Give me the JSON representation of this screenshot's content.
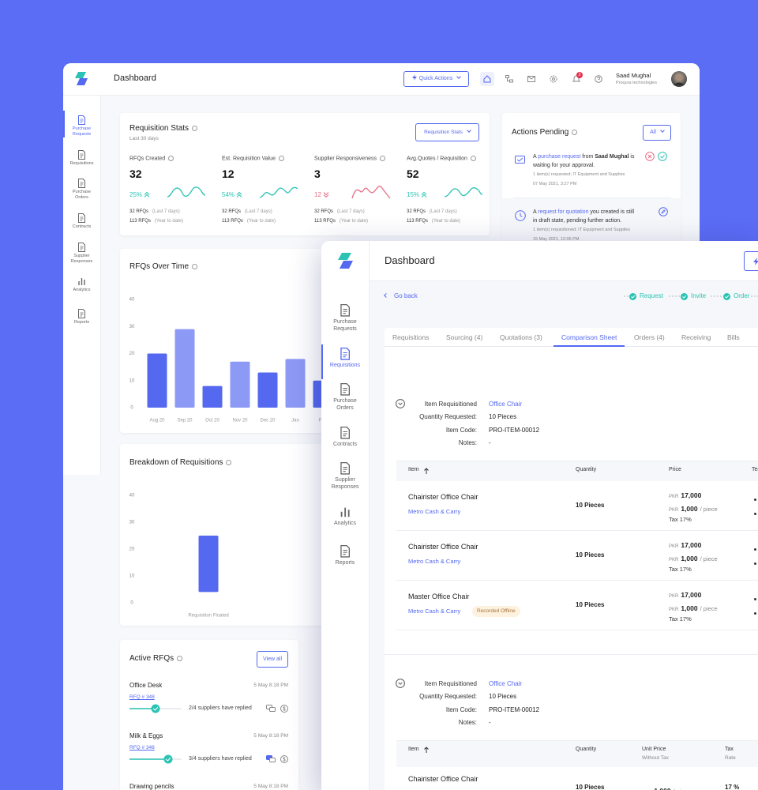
{
  "back_window": {
    "header": {
      "title": "Dashboard",
      "quick_actions": "Quick Actions",
      "notifications": "2",
      "user_name": "Saad Mughal",
      "user_company": "Proqura technologies"
    },
    "sidebar": {
      "items": [
        "Purchase Requests",
        "Requisitions",
        "Purchase Orders",
        "Contracts",
        "Supplier Responses",
        "Analytics",
        "Reports"
      ],
      "active": 0
    },
    "requisition_stats": {
      "title": "Requisition Stats",
      "subtitle": "Last 30 days",
      "dropdown": "Requisition Stats",
      "stats": [
        {
          "label": "RFQs Created",
          "value": "32",
          "change": "25%",
          "color": "#2bc3b3",
          "recent": "32 RFQs",
          "recent_note": "(Last 7 days)",
          "total": "113 RFQs",
          "total_note": "(Year to date)"
        },
        {
          "label": "Est. Requisition Value",
          "value": "12",
          "change": "54%",
          "color": "#2bc3b3",
          "recent": "32 RFQs",
          "recent_note": "(Last 7 days)",
          "total": "113 RFQs",
          "total_note": "(Year to date)"
        },
        {
          "label": "Supplier Responsiveness",
          "value": "3",
          "change": "12",
          "color": "#e66d86",
          "recent": "32 RFQs",
          "recent_note": "(Last 7 days)",
          "total": "113 RFQs",
          "total_note": "(Year to date)"
        },
        {
          "label": "Avg.Quotes / Requisition",
          "value": "52",
          "change": "15%",
          "color": "#2bc3b3",
          "recent": "32 RFQs",
          "recent_note": "(Last 7 days)",
          "total": "113 RFQs",
          "total_note": "(Year to date)"
        }
      ]
    },
    "actions_pending": {
      "title": "Actions Pending",
      "filter": "All",
      "items": [
        {
          "prefix": "A",
          "link": "purchase request",
          "middle": "from",
          "person": "Saad Mughal",
          "suffix": "is waiting for your approval.",
          "details": "1 item(s) requested; IT Equipment and Supplies",
          "date": "07 May 2021, 3:27 PM"
        },
        {
          "prefix": "A",
          "link": "request for quotation",
          "suffix": "you created is still in draft state, pending further action.",
          "details": "1 item(s) requisitioned; IT Equipment and Supplies",
          "date": "15 May 2021, 12:05 PM"
        }
      ]
    },
    "active_rfqs": {
      "title": "Active RFQs",
      "button": "View all",
      "items": [
        {
          "name": "Office Desk",
          "date": "5 May 8:18 PM",
          "rfq": "RFQ # 348",
          "replies": "2/4 suppliers have replied"
        },
        {
          "name": "Milk & Eggs",
          "date": "5 May 8:18 PM",
          "rfq": "RFQ # 348",
          "replies": "3/4 suppliers have replied"
        },
        {
          "name": "Drawing pencils",
          "date": "5 May 8:18 PM"
        }
      ]
    }
  },
  "chart_data": [
    {
      "type": "bar",
      "title": "RFQs Over Time",
      "categories": [
        "Aug 20",
        "Sep 20",
        "Oct 20",
        "Nov 20",
        "Dec 20",
        "Jan",
        "Feb"
      ],
      "values": [
        20,
        29,
        8,
        17,
        13,
        18,
        10
      ],
      "colors": [
        "#5468f0",
        "#8c99f5",
        "#5468f0",
        "#8c99f5",
        "#5468f0",
        "#8c99f5",
        "#5468f0"
      ],
      "ylim": [
        0,
        40
      ],
      "yticks": [
        0,
        10,
        20,
        30,
        40
      ]
    },
    {
      "type": "range_bar",
      "title": "Breakdown of Requisitions",
      "categories": [
        "Requisition Floated"
      ],
      "low": [
        4
      ],
      "high": [
        25
      ],
      "color": "#5468f0",
      "ylim": [
        0,
        40
      ],
      "yticks": [
        0,
        10,
        20,
        30,
        40
      ]
    }
  ],
  "front_window": {
    "header": {
      "title": "Dashboard"
    },
    "sidebar": {
      "items": [
        "Purchase Requests",
        "Requisitions",
        "Purchase Orders",
        "Contracts",
        "Supplier Responses",
        "Analytics",
        "Reports"
      ],
      "active": 1
    },
    "go_back": "Go back",
    "steps": [
      "Request",
      "Invite",
      "Order"
    ],
    "tabs": [
      "Requisitions",
      "Sourcing (4)",
      "Quotations (3)",
      "Comparison Sheet",
      "Orders (4)",
      "Receiving",
      "Bills"
    ],
    "active_tab": 3,
    "sections": [
      {
        "details": [
          {
            "label": "Item Requisitioned",
            "value": "Office Chair"
          },
          {
            "label": "Quantity Requested:",
            "value": "10 Pieces"
          },
          {
            "label": "Item Code:",
            "value": "PRO-ITEM-00012"
          },
          {
            "label": "Notes:",
            "value": "-"
          }
        ],
        "columns": [
          {
            "name": "Item"
          },
          {
            "name": "Quantity"
          },
          {
            "name": "Price"
          },
          {
            "name": "Terms"
          }
        ],
        "rows": [
          {
            "item": "Chairister Office Chair",
            "supplier": "Metro Cash & Carry",
            "quantity": "10 Pieces",
            "currency": "PKR",
            "price": "17,000",
            "unit_price": "1,000",
            "unit": "/ piece",
            "tax": "Tax 17%"
          },
          {
            "item": "Chairister Office Chair",
            "supplier": "Metro Cash & Carry",
            "quantity": "10 Pieces",
            "currency": "PKR",
            "price": "17,000",
            "unit_price": "1,000",
            "unit": "/ piece",
            "tax": "Tax 17%"
          },
          {
            "item": "Master Office Chair",
            "supplier": "Metro Cash & Carry",
            "badge": "Recorded Offline",
            "quantity": "10 Pieces",
            "currency": "PKR",
            "price": "17,000",
            "unit_price": "1,000",
            "unit": "/ piece",
            "tax": "Tax 17%"
          }
        ]
      },
      {
        "details": [
          {
            "label": "Item Requisitioned",
            "value": "Office Chair"
          },
          {
            "label": "Quantity Requested:",
            "value": "10 Pieces"
          },
          {
            "label": "Item Code:",
            "value": "PRO-ITEM-00012"
          },
          {
            "label": "Notes:",
            "value": "-"
          }
        ],
        "columns": [
          {
            "name": "Item"
          },
          {
            "name": "Quantity"
          },
          {
            "name": "Unit Price",
            "sub": "Without Tax"
          },
          {
            "name": "Tax",
            "sub": "Rate"
          }
        ],
        "rows": [
          {
            "item": "Chairister Office Chair",
            "quantity": "10 Pieces",
            "currency": "PKR",
            "unit_price": "1,000",
            "unit": "/ piece",
            "tax": "17 %"
          }
        ]
      }
    ]
  }
}
